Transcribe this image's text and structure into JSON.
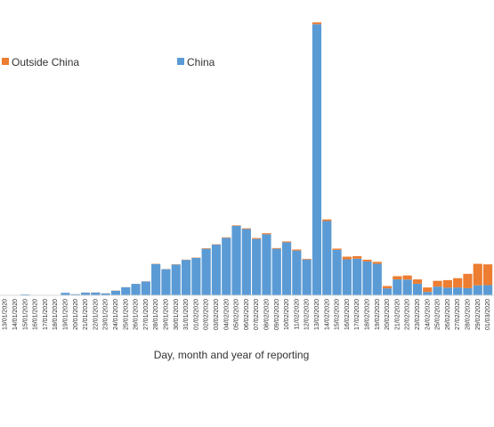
{
  "chart_data": {
    "type": "bar",
    "stacked": true,
    "xlabel": "Day, month and year of reporting",
    "ylabel": "",
    "ylim": [
      0,
      15300
    ],
    "grid": false,
    "legend": {
      "placement": "top",
      "entries": [
        {
          "name": "Outside China",
          "color": "#ED7D31"
        },
        {
          "name": "China",
          "color": "#5B9BD5"
        }
      ]
    },
    "categories": [
      "13/01/2020",
      "14/01/2020",
      "15/01/2020",
      "16/01/2020",
      "17/01/2020",
      "18/01/2020",
      "19/01/2020",
      "20/01/2020",
      "21/01/2020",
      "22/01/2020",
      "23/01/2020",
      "24/01/2020",
      "25/01/2020",
      "26/01/2020",
      "27/01/2020",
      "28/01/2020",
      "29/01/2020",
      "30/01/2020",
      "31/01/2020",
      "01/02/2020",
      "02/02/2020",
      "03/02/2020",
      "04/02/2020",
      "05/02/2020",
      "06/02/2020",
      "07/02/2020",
      "08/02/2020",
      "09/02/2020",
      "10/02/2020",
      "11/02/2020",
      "12/02/2020",
      "13/02/2020",
      "14/02/2020",
      "15/02/2020",
      "16/02/2020",
      "17/02/2020",
      "18/02/2020",
      "19/02/2020",
      "20/02/2020",
      "21/02/2020",
      "22/02/2020",
      "23/02/2020",
      "24/02/2020",
      "25/02/2020",
      "26/02/2020",
      "27/02/2020",
      "28/02/2020",
      "29/02/2020",
      "01/03/2020"
    ],
    "series": [
      {
        "name": "China",
        "color": "#5B9BD5",
        "values": [
          10,
          10,
          50,
          10,
          10,
          10,
          140,
          60,
          150,
          150,
          110,
          260,
          450,
          640,
          770,
          1750,
          1460,
          1720,
          1980,
          2090,
          2600,
          2830,
          3210,
          3880,
          3700,
          3150,
          3410,
          2600,
          2960,
          2500,
          2000,
          15140,
          4150,
          2540,
          2010,
          2050,
          1890,
          1760,
          390,
          890,
          880,
          650,
          190,
          490,
          430,
          440,
          400,
          560,
          570
        ]
      },
      {
        "name": "Outside China",
        "color": "#ED7D31",
        "values": [
          0,
          0,
          0,
          0,
          0,
          0,
          0,
          5,
          5,
          10,
          5,
          10,
          5,
          5,
          10,
          15,
          10,
          15,
          15,
          20,
          30,
          20,
          30,
          30,
          40,
          50,
          60,
          40,
          50,
          60,
          40,
          100,
          90,
          70,
          150,
          140,
          100,
          110,
          130,
          180,
          230,
          240,
          250,
          320,
          420,
          520,
          800,
          1200,
          1160
        ]
      }
    ]
  }
}
